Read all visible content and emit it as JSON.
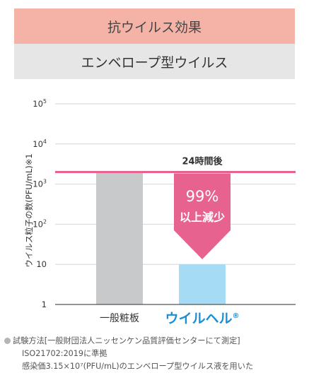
{
  "header": {
    "title": "抗ウイルス効果",
    "subtitle": "エンベロープ型ウイルス",
    "title_bg": "#f5b3a8",
    "subtitle_bg": "#e6e6e6"
  },
  "chart_data": {
    "type": "bar",
    "categories": [
      "一般粧板",
      "ウイルヘル"
    ],
    "category_registered_mark": "®",
    "values": [
      2000,
      10
    ],
    "scale": "log",
    "ylim": [
      1,
      100000
    ],
    "yticks": [
      {
        "value": 1,
        "label": "1"
      },
      {
        "value": 10,
        "label": "10"
      },
      {
        "value": 100,
        "label": "10",
        "exp": "2"
      },
      {
        "value": 1000,
        "label": "10",
        "exp": "3"
      },
      {
        "value": 10000,
        "label": "10",
        "exp": "4"
      },
      {
        "value": 100000,
        "label": "10",
        "exp": "5"
      }
    ],
    "ylabel": "ウイルス粒子の数(PFU/mL)※1",
    "xlabel": "",
    "grid": true,
    "reference_line": {
      "value": 2000,
      "label": "24時間後",
      "color": "#e8628f"
    },
    "annotation": {
      "line1": "99%",
      "line2": "以上減少",
      "color": "#e8628f"
    },
    "bar_colors": [
      "#c7c9ca",
      "#a6dbf5"
    ],
    "category_colors": [
      "#333333",
      "#1a8fd6"
    ]
  },
  "notes": {
    "line1": "試験方法[一般財団法人ニッセンケン品質評価センターにて測定]",
    "line2": "ISO21702:2019に準拠",
    "line3": "感染価3.15×10⁷(PFU/mL)のエンベロープ型ウイルス液を用いた"
  }
}
